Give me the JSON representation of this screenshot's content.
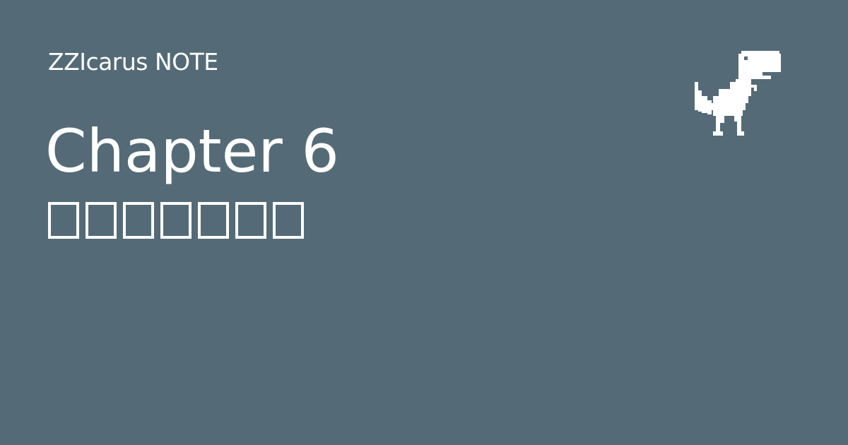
{
  "header": {
    "brand": "ZZIcarus NOTE"
  },
  "main": {
    "title": "Chapter 6",
    "subtitle_glyphs": [
      "□",
      "□",
      "□",
      "□",
      "□",
      "□",
      "□"
    ]
  },
  "decor": {
    "mascot_icon": "pixel-dinosaur-icon",
    "background_color": "#546b77",
    "text_color": "#ffffff"
  }
}
